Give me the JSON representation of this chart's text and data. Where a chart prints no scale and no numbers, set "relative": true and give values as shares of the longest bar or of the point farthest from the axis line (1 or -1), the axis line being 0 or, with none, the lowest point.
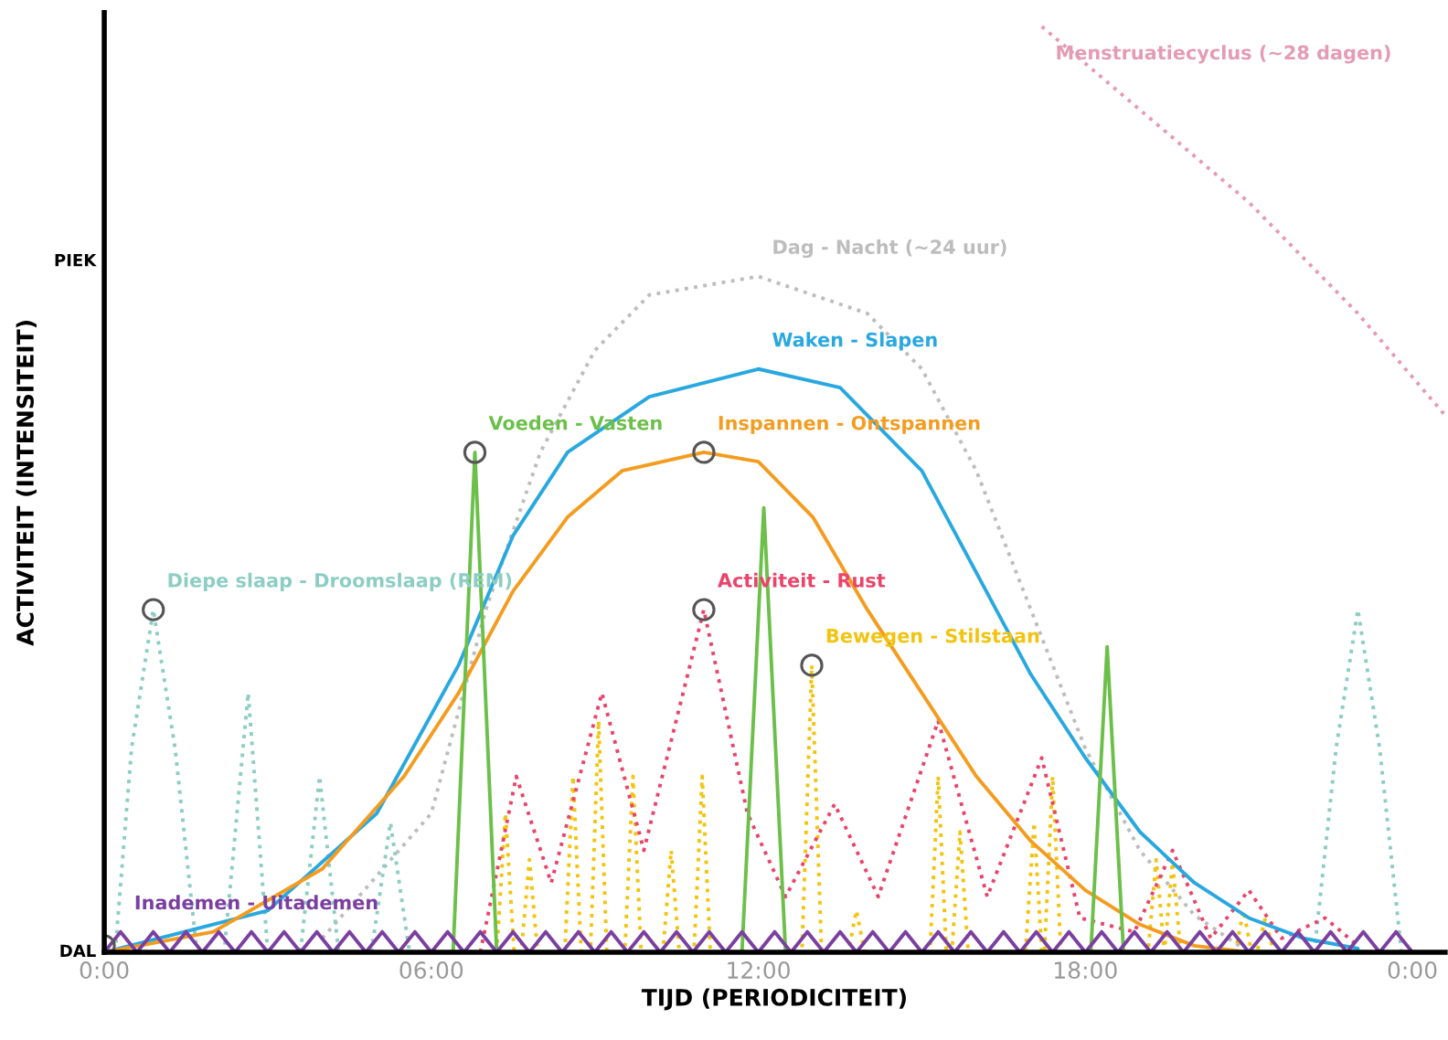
{
  "chart_data": {
    "type": "line",
    "relative": true,
    "xlabel": "TIJD (PERIODICITEIT)",
    "ylabel": "ACTIVITEIT (INTENSITEIT)",
    "xlim": [
      0,
      24.6
    ],
    "xticks": [
      {
        "value": 0,
        "label": "0:00"
      },
      {
        "value": 6,
        "label": "06:00"
      },
      {
        "value": 12,
        "label": "12:00"
      },
      {
        "value": 18,
        "label": "18:00"
      },
      {
        "value": 24,
        "label": "0:00"
      }
    ],
    "annotations": [
      "DAL",
      "PIEK"
    ],
    "grid": false,
    "legend": false,
    "series": [
      {
        "name": "Menstruatiecyclus (~28 dagen)",
        "color": "#e49bb4",
        "line_style": "dotted",
        "x": [
          17.2,
          19,
          21,
          23,
          24.6
        ],
        "values": [
          1,
          0.91,
          0.81,
          0.69,
          0.58
        ]
      },
      {
        "name": "Dag - Nacht (~24 uur)",
        "color": "#bdbdbd",
        "line_style": "dotted",
        "x": [
          4,
          6,
          7,
          8,
          9,
          10,
          12,
          14,
          15,
          16,
          17,
          18,
          19,
          20,
          21
        ],
        "values": [
          0.015,
          0.15,
          0.37,
          0.54,
          0.65,
          0.71,
          0.73,
          0.69,
          0.63,
          0.52,
          0.37,
          0.22,
          0.11,
          0.04,
          0
        ]
      },
      {
        "name": "Diepe slaap - Droomslaap (REM)",
        "color": "#8ccdc4",
        "line_style": "dotted",
        "x": [
          0.2,
          0.5,
          0.9,
          1.3,
          1.7,
          2.2,
          2.64,
          3.0,
          3.6,
          3.95,
          4.3,
          4.9,
          5.25,
          5.6,
          6,
          22,
          22.2,
          22.6,
          23,
          23.4,
          23.8
        ],
        "values": [
          0,
          0.22,
          0.37,
          0.22,
          0,
          0,
          0.28,
          0,
          0,
          0.19,
          0,
          0,
          0.14,
          0,
          null,
          null,
          0,
          0.22,
          0.37,
          0.22,
          0
        ]
      },
      {
        "name": "Bewegen - Stilstaan",
        "color": "#f2c40f",
        "line_style": "dotted",
        "x": [
          7.2,
          7.36,
          7.52,
          7.65,
          7.8,
          7.95,
          8.45,
          8.6,
          8.75,
          8.92,
          9.07,
          9.22,
          9.55,
          9.7,
          9.85,
          10.25,
          10.4,
          10.55,
          10.82,
          10.97,
          11.12,
          12.8,
          12.98,
          13.16,
          13.65,
          13.8,
          13.95,
          15.15,
          15.3,
          15.45,
          15.55,
          15.7,
          15.85,
          16.9,
          17.06,
          17.2,
          17.25,
          17.4,
          17.55,
          19.15,
          19.3,
          19.45,
          19.6,
          19.75,
          20.75,
          20.9,
          21.05,
          21.15,
          21.3,
          21.45
        ],
        "values": [
          0,
          0.15,
          0,
          0,
          0.1,
          0,
          0,
          0.19,
          0,
          0,
          0.25,
          0,
          0,
          0.19,
          0,
          0,
          0.11,
          0,
          0,
          0.19,
          0,
          0,
          0.31,
          0,
          0,
          0.045,
          0,
          0,
          0.19,
          0,
          0,
          0.13,
          0,
          0,
          0.14,
          0,
          0,
          0.19,
          0,
          0,
          0.1,
          0,
          0.097,
          0,
          0,
          0.045,
          0,
          0,
          0.037,
          0
        ]
      },
      {
        "name": "Activiteit - Rust",
        "color": "#e9446a",
        "line_style": "dotted",
        "x": [
          6.9,
          7.56,
          8.2,
          9.13,
          9.9,
          11,
          11.8,
          12.5,
          13.4,
          14.2,
          15.3,
          16.2,
          17.2,
          17.9,
          18.9,
          19.6,
          20.3,
          21,
          21.6,
          22.4,
          23
        ],
        "values": [
          0,
          0.19,
          0.075,
          0.28,
          0.11,
          0.37,
          0.15,
          0.06,
          0.16,
          0.06,
          0.25,
          0.06,
          0.21,
          0.037,
          0.022,
          0.11,
          0.015,
          0.067,
          0.015,
          0.037,
          0.007
        ]
      },
      {
        "name": "Waken - Slapen",
        "color": "#29a8e0",
        "line_style": "solid",
        "x": [
          0,
          3,
          5,
          6.5,
          7.5,
          8.5,
          10,
          12,
          13.5,
          15,
          16,
          17,
          18,
          19,
          20,
          21,
          22,
          23
        ],
        "values": [
          0,
          0.045,
          0.15,
          0.31,
          0.45,
          0.54,
          0.6,
          0.63,
          0.61,
          0.52,
          0.41,
          0.3,
          0.21,
          0.13,
          0.075,
          0.037,
          0.015,
          0.004
        ]
      },
      {
        "name": "Inspannen - Ontspannen",
        "color": "#f39c1f",
        "line_style": "solid",
        "x": [
          0,
          2,
          4,
          5.5,
          6.5,
          7.5,
          8.5,
          9.5,
          11,
          12,
          13,
          14,
          15,
          16,
          17,
          18,
          19,
          20,
          21
        ],
        "values": [
          0,
          0.022,
          0.09,
          0.19,
          0.28,
          0.39,
          0.47,
          0.52,
          0.54,
          0.53,
          0.47,
          0.37,
          0.28,
          0.19,
          0.12,
          0.067,
          0.03,
          0.007,
          0
        ]
      },
      {
        "name": "Voeden - Vasten",
        "color": "#6cc04a",
        "line_style": "solid",
        "x": [
          0,
          6.4,
          6.8,
          7.2,
          11.7,
          12.1,
          12.5,
          18.1,
          18.4,
          18.7,
          24
        ],
        "values": [
          0,
          0,
          0.54,
          0,
          0,
          0.48,
          0,
          0,
          0.33,
          0,
          0
        ]
      },
      {
        "name": "Inademen - Uitademen",
        "color": "#7b3fa0",
        "line_style": "solid",
        "x": [
          0,
          0.3,
          0.6,
          0.9,
          1.2,
          1.5,
          1.8,
          2.1,
          2.4,
          2.7,
          3,
          3.3,
          3.6,
          3.9,
          4.2,
          4.5,
          4.8,
          5.1,
          5.4,
          5.7,
          6,
          6.3,
          6.6,
          6.9,
          7.2,
          7.5,
          7.8,
          8.1,
          8.4,
          8.7,
          9,
          9.3,
          9.6,
          9.9,
          10.2,
          10.5,
          10.8,
          11.1,
          11.4,
          11.7,
          12,
          12.3,
          12.6,
          12.9,
          13.2,
          13.5,
          13.8,
          14.1,
          14.4,
          14.7,
          15,
          15.3,
          15.6,
          15.9,
          16.2,
          16.5,
          16.8,
          17.1,
          17.4,
          17.7,
          18,
          18.3,
          18.6,
          18.9,
          19.2,
          19.5,
          19.8,
          20.1,
          20.4,
          20.7,
          21,
          21.3,
          21.6,
          21.9,
          22.2,
          22.5,
          22.8,
          23.1,
          23.4,
          23.7,
          24
        ],
        "values": [
          0,
          0.022,
          0,
          0.022,
          0,
          0.022,
          0,
          0.022,
          0,
          0.022,
          0,
          0.022,
          0,
          0.022,
          0,
          0.022,
          0,
          0.022,
          0,
          0.022,
          0,
          0.022,
          0,
          0.022,
          0,
          0.022,
          0,
          0.022,
          0,
          0.022,
          0,
          0.022,
          0,
          0.022,
          0,
          0.022,
          0,
          0.022,
          0,
          0.022,
          0,
          0.022,
          0,
          0.022,
          0,
          0.022,
          0,
          0.022,
          0,
          0.022,
          0,
          0.022,
          0,
          0.022,
          0,
          0.022,
          0,
          0.022,
          0,
          0.022,
          0,
          0.022,
          0,
          0.022,
          0,
          0.022,
          0,
          0.022,
          0,
          0.022,
          0,
          0.022,
          0,
          0.022,
          0,
          0.022,
          0,
          0.022,
          0,
          0.022,
          0
        ]
      },
      {
        "type": "scatter",
        "color": "#555555",
        "marker": "circle",
        "x": [
          0,
          0.9,
          6.8,
          11,
          11,
          12.98
        ],
        "values": [
          0.007,
          0.37,
          0.54,
          0.54,
          0.37,
          0.31
        ]
      }
    ]
  }
}
